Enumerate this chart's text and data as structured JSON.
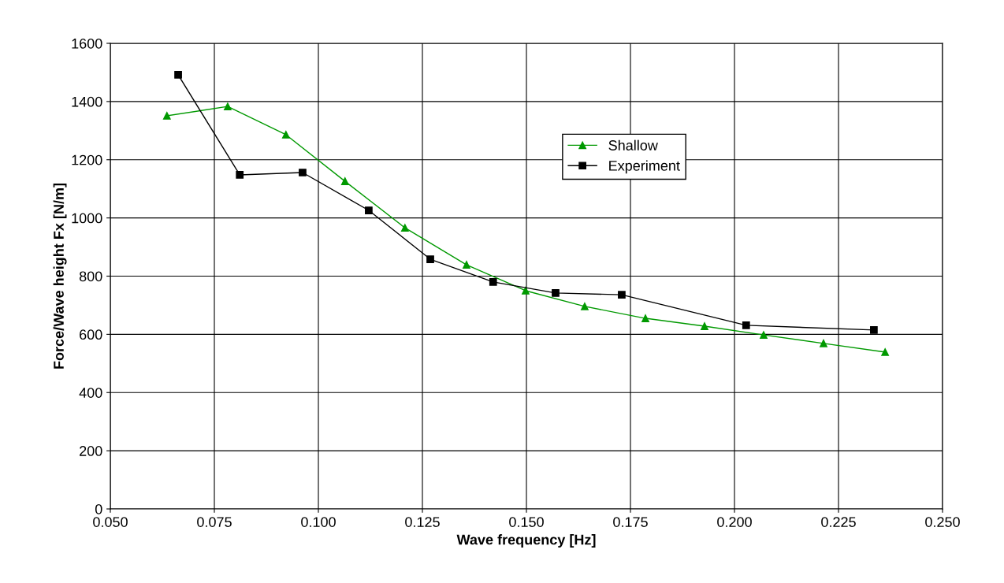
{
  "chart_data": {
    "type": "line",
    "xlabel": "Wave frequency [Hz]",
    "ylabel": "Force/Wave height Fx [N/m]",
    "series": [
      {
        "name": "Shallow",
        "color": "#009900",
        "marker": "triangle",
        "x": [
          0.0636,
          0.0782,
          0.0922,
          0.1064,
          0.1208,
          0.1356,
          0.1498,
          0.164,
          0.1786,
          0.1928,
          0.207,
          0.2214,
          0.2362
        ],
        "values": [
          1351,
          1383,
          1286,
          1126,
          966,
          839,
          750,
          696,
          655,
          628,
          598,
          569,
          539
        ]
      },
      {
        "name": "Experiment",
        "color": "#000000",
        "marker": "square",
        "x": [
          0.0663,
          0.0811,
          0.0962,
          0.1121,
          0.1269,
          0.142,
          0.157,
          0.1729,
          0.2028,
          0.2335
        ],
        "values": [
          1492,
          1148,
          1156,
          1026,
          858,
          780,
          742,
          736,
          631,
          615
        ]
      }
    ],
    "xlim": [
      0.05,
      0.25
    ],
    "xticks": [
      {
        "value": 0.05,
        "label": "0.050"
      },
      {
        "value": 0.075,
        "label": "0.075"
      },
      {
        "value": 0.1,
        "label": "0.100"
      },
      {
        "value": 0.125,
        "label": "0.125"
      },
      {
        "value": 0.15,
        "label": "0.150"
      },
      {
        "value": 0.175,
        "label": "0.175"
      },
      {
        "value": 0.2,
        "label": "0.200"
      },
      {
        "value": 0.225,
        "label": "0.225"
      },
      {
        "value": 0.25,
        "label": "0.250"
      }
    ],
    "ylim": [
      0,
      1600
    ],
    "yticks": [
      0,
      200,
      400,
      600,
      800,
      1000,
      1200,
      1400,
      1600
    ],
    "grid": true,
    "legend": "top right",
    "line_style": "solid"
  }
}
